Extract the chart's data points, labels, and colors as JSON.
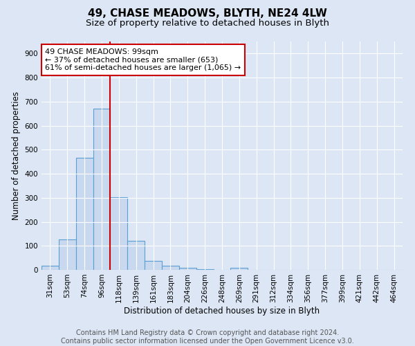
{
  "title": "49, CHASE MEADOWS, BLYTH, NE24 4LW",
  "subtitle": "Size of property relative to detached houses in Blyth",
  "xlabel": "Distribution of detached houses by size in Blyth",
  "ylabel": "Number of detached properties",
  "footer_line1": "Contains HM Land Registry data © Crown copyright and database right 2024.",
  "footer_line2": "Contains public sector information licensed under the Open Government Licence v3.0.",
  "categories": [
    "31sqm",
    "53sqm",
    "74sqm",
    "96sqm",
    "118sqm",
    "139sqm",
    "161sqm",
    "183sqm",
    "204sqm",
    "226sqm",
    "248sqm",
    "269sqm",
    "291sqm",
    "312sqm",
    "334sqm",
    "356sqm",
    "377sqm",
    "399sqm",
    "421sqm",
    "442sqm",
    "464sqm"
  ],
  "values": [
    17,
    127,
    465,
    672,
    303,
    120,
    37,
    17,
    8,
    3,
    0,
    10,
    0,
    0,
    0,
    0,
    0,
    0,
    0,
    0,
    0
  ],
  "bar_color": "#c8d8ee",
  "bar_edge_color": "#5a9fd4",
  "property_line_color": "#cc0000",
  "property_line_index": 3.5,
  "annotation_text": "49 CHASE MEADOWS: 99sqm\n← 37% of detached houses are smaller (653)\n61% of semi-detached houses are larger (1,065) →",
  "annotation_box_facecolor": "#ffffff",
  "annotation_box_edgecolor": "#cc0000",
  "ylim": [
    0,
    950
  ],
  "yticks": [
    0,
    100,
    200,
    300,
    400,
    500,
    600,
    700,
    800,
    900
  ],
  "background_color": "#dce6f5",
  "plot_background_color": "#dce6f5",
  "grid_color": "#ffffff",
  "title_fontsize": 11,
  "subtitle_fontsize": 9.5,
  "axis_label_fontsize": 8.5,
  "tick_fontsize": 7.5,
  "footer_fontsize": 7
}
